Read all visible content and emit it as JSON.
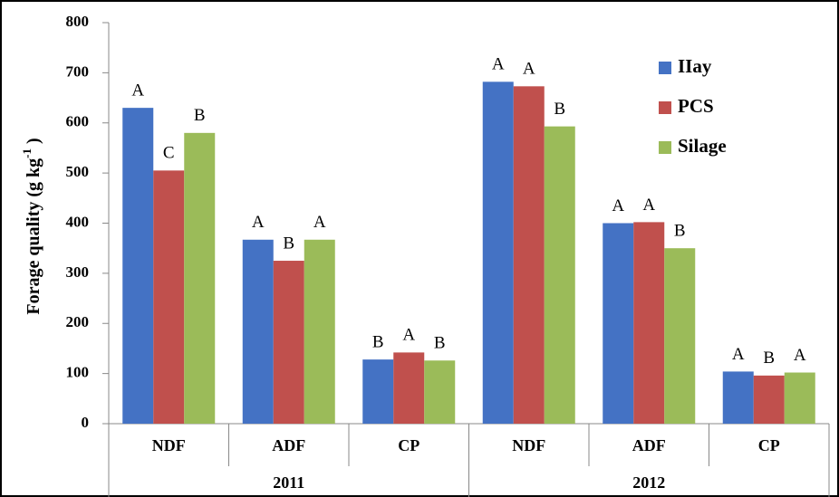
{
  "chart_data": {
    "type": "bar",
    "ylabel_parts": [
      "Forage quality (g kg",
      "-1",
      " )"
    ],
    "categories": [
      "NDF",
      "ADF",
      "CP",
      "NDF",
      "ADF",
      "CP"
    ],
    "groups": [
      "2011",
      "2012"
    ],
    "series": [
      {
        "name": "IIay",
        "color": "#4472c4",
        "values": [
          630,
          367,
          128,
          682,
          400,
          104
        ],
        "letters": [
          "A",
          "A",
          "B",
          "A",
          "A",
          "A"
        ]
      },
      {
        "name": "PCS",
        "color": "#c0504d",
        "values": [
          505,
          325,
          142,
          673,
          402,
          96
        ],
        "letters": [
          "C",
          "B",
          "A",
          "A",
          "A",
          "B"
        ]
      },
      {
        "name": "Silage",
        "color": "#9bbb59",
        "values": [
          580,
          367,
          126,
          593,
          350,
          102
        ],
        "letters": [
          "B",
          "A",
          "B",
          "B",
          "B",
          "A"
        ]
      }
    ],
    "ylim": [
      0,
      800
    ],
    "yticks": [
      0,
      100,
      200,
      300,
      400,
      500,
      600,
      700,
      800
    ],
    "grid": false,
    "legend": "top-right"
  }
}
